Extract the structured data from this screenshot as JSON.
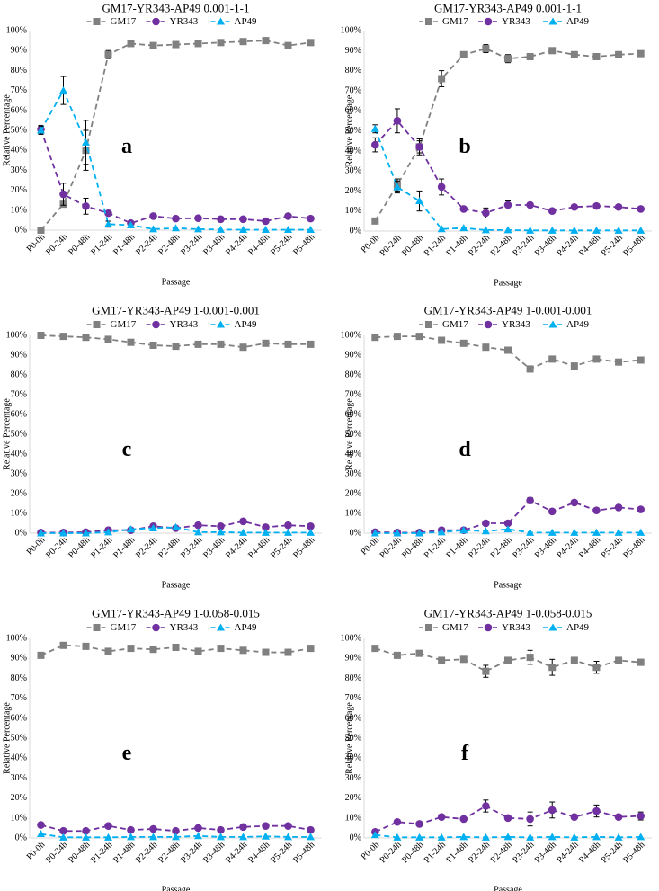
{
  "figure": {
    "xlabel": "Passage",
    "ylabel": "Relative Percentage",
    "series_colors": {
      "GM17": "#808080",
      "YR343": "#7030a0",
      "AP49": "#00b0f0"
    }
  },
  "chart_data": [
    {
      "type": "line",
      "panel_label": "a",
      "title": "GM17-YR343-AP49 0.001-1-1",
      "xlabel": "Passage",
      "ylabel": "Relative Percentage",
      "categories": [
        "P0-0h",
        "P0-24h",
        "P0-48h",
        "P1-24h",
        "P1-48h",
        "P2-24h",
        "P2-48h",
        "P3-24h",
        "P3-48h",
        "P4-24h",
        "P4-48h",
        "P5-24h",
        "P5-48h"
      ],
      "y_ticks": [
        "0%",
        "10%",
        "20%",
        "30%",
        "40%",
        "50%",
        "60%",
        "70%",
        "80%",
        "90%",
        "100%"
      ],
      "ylim": [
        0,
        100
      ],
      "legend": [
        "GM17",
        "YR343",
        "AP49"
      ],
      "series": [
        {
          "name": "GM17",
          "values": [
            0,
            13,
            40,
            88,
            93.5,
            92.5,
            93,
            93.5,
            94,
            94.5,
            95,
            92.5,
            94
          ],
          "errors": [
            0,
            1,
            10,
            2,
            1,
            1,
            1,
            1,
            1,
            1,
            1,
            1,
            1
          ]
        },
        {
          "name": "YR343",
          "values": [
            50.5,
            18,
            12,
            8.5,
            3.5,
            7,
            5.8,
            6,
            5.5,
            5.5,
            4.5,
            7,
            5.8
          ],
          "errors": [
            2,
            5.5,
            4,
            1,
            0.5,
            0.5,
            0.5,
            0.5,
            0.5,
            0.5,
            0.5,
            0.5,
            0.5
          ]
        },
        {
          "name": "AP49",
          "values": [
            50,
            70,
            44,
            3,
            2.5,
            0.5,
            1,
            0.5,
            0.3,
            0.2,
            0.2,
            0.2,
            0.2
          ],
          "errors": [
            2,
            7,
            11,
            1.5,
            0.5,
            0.2,
            0.2,
            0.2,
            0.2,
            0.2,
            0.2,
            0.2,
            0.2
          ]
        }
      ]
    },
    {
      "type": "line",
      "panel_label": "b",
      "title": "GM17-YR343-AP49 0.001-1-1",
      "xlabel": "Passage",
      "ylabel": "Relative Percentage",
      "categories": [
        "P0-0h",
        "P0-24h",
        "P0-48h",
        "P1-24h",
        "P1-48h",
        "P2-24h",
        "P2-48h",
        "P3-24h",
        "P3-48h",
        "P4-24h",
        "P4-48h",
        "P5-24h",
        "P5-48h"
      ],
      "y_ticks": [
        "0%",
        "10%",
        "20%",
        "30%",
        "40%",
        "50%",
        "60%",
        "70%",
        "80%",
        "90%",
        "100%"
      ],
      "ylim": [
        0,
        100
      ],
      "legend": [
        "GM17",
        "YR343",
        "AP49"
      ],
      "series": [
        {
          "name": "GM17",
          "values": [
            5,
            23,
            42,
            76,
            88,
            91,
            86,
            87,
            90,
            88,
            87,
            88,
            88.5
          ],
          "errors": [
            1,
            3,
            4,
            4,
            1,
            2,
            2,
            1,
            1,
            1,
            1,
            1,
            1
          ]
        },
        {
          "name": "YR343",
          "values": [
            43,
            55,
            42,
            22,
            11,
            9,
            13,
            13,
            10,
            12,
            12.5,
            12,
            11
          ],
          "errors": [
            3.5,
            6,
            3,
            4,
            1,
            2.5,
            2,
            1,
            1,
            1,
            1,
            1,
            1
          ]
        },
        {
          "name": "AP49",
          "values": [
            51,
            22,
            15,
            1,
            1.5,
            0.5,
            0.5,
            0.3,
            0.3,
            0.3,
            0.3,
            0.3,
            0.3
          ],
          "errors": [
            2,
            3,
            5,
            0.5,
            0.5,
            0.2,
            0.2,
            0.2,
            0.2,
            0.2,
            0.2,
            0.2,
            0.2
          ]
        }
      ]
    },
    {
      "type": "line",
      "panel_label": "c",
      "title": "GM17-YR343-AP49 1-0.001-0.001",
      "xlabel": "Passage",
      "ylabel": "Relative Percentage",
      "categories": [
        "P0-0h",
        "P0-24h",
        "P0-48h",
        "P1-24h",
        "P1-48h",
        "P2-24h",
        "P2-48h",
        "P3-24h",
        "P3-48h",
        "P4-24h",
        "P4-48h",
        "P5-24h",
        "P5-48h"
      ],
      "y_ticks": [
        "0%",
        "10%",
        "20%",
        "30%",
        "40%",
        "50%",
        "60%",
        "70%",
        "80%",
        "90%",
        "100%"
      ],
      "ylim": [
        0,
        100
      ],
      "legend": [
        "GM17",
        "YR343",
        "AP49"
      ],
      "series": [
        {
          "name": "GM17",
          "values": [
            100,
            99.5,
            99,
            98,
            96.5,
            95,
            94.5,
            95.5,
            95.5,
            94,
            96,
            95.5,
            95.5
          ],
          "errors": [
            0,
            0,
            0.5,
            0.5,
            0.5,
            0.5,
            0.5,
            0.5,
            0.5,
            0.5,
            0.5,
            0.5,
            0.5
          ]
        },
        {
          "name": "YR343",
          "values": [
            0.3,
            0.3,
            0.5,
            1.5,
            1.5,
            3.5,
            2.5,
            4,
            3.5,
            6,
            3,
            4,
            3.5
          ],
          "errors": [
            0,
            0,
            0,
            0.3,
            0.3,
            0.5,
            0.5,
            0.5,
            0.5,
            0.5,
            0.5,
            0.5,
            0.5
          ]
        },
        {
          "name": "AP49",
          "values": [
            0,
            0,
            0,
            0.5,
            2,
            2.5,
            3,
            0.5,
            0.5,
            0.3,
            0.3,
            0.3,
            0.3
          ],
          "errors": [
            0,
            0,
            0,
            0.2,
            0.5,
            0.5,
            0.5,
            0.2,
            0.2,
            0.2,
            0.2,
            0.2,
            0.2
          ]
        }
      ]
    },
    {
      "type": "line",
      "panel_label": "d",
      "title": "GM17-YR343-AP49 1-0.001-0.001",
      "xlabel": "Passage",
      "ylabel": "Relative Percentage",
      "categories": [
        "P0-0h",
        "P0-24h",
        "P0-48h",
        "P1-24h",
        "P1-48h",
        "P2-24h",
        "P2-48h",
        "P3-24h",
        "P3-48h",
        "P4-24h",
        "P4-48h",
        "P5-24h",
        "P5-48h"
      ],
      "y_ticks": [
        "0%",
        "10%",
        "20%",
        "30%",
        "40%",
        "50%",
        "60%",
        "70%",
        "80%",
        "90%",
        "100%"
      ],
      "ylim": [
        0,
        100
      ],
      "legend": [
        "GM17",
        "YR343",
        "AP49"
      ],
      "series": [
        {
          "name": "GM17",
          "values": [
            99,
            99.5,
            99.5,
            97.5,
            96,
            94,
            92.5,
            83,
            88,
            84.5,
            88,
            86.5,
            87.5
          ],
          "errors": [
            0,
            0,
            0.5,
            0.5,
            0.5,
            1,
            0.5,
            1.5,
            0.5,
            0.5,
            0.5,
            0.5,
            0.5
          ]
        },
        {
          "name": "YR343",
          "values": [
            0.5,
            0.3,
            0.3,
            1.5,
            1.5,
            5,
            5,
            16.5,
            11,
            15.5,
            11.5,
            13,
            12
          ],
          "errors": [
            0,
            0,
            0,
            0.3,
            0.3,
            1,
            0.5,
            1.5,
            0.5,
            0.5,
            0.5,
            0.5,
            0.5
          ]
        },
        {
          "name": "AP49",
          "values": [
            0,
            0,
            0,
            0.5,
            1.5,
            1,
            2,
            0.3,
            0.3,
            0.3,
            0.3,
            0.3,
            0.3
          ],
          "errors": [
            0,
            0,
            0,
            0.2,
            0.3,
            0.3,
            0.5,
            0.2,
            0.2,
            0.2,
            0.2,
            0.2,
            0.2
          ]
        }
      ]
    },
    {
      "type": "line",
      "panel_label": "e",
      "title": "GM17-YR343-AP49 1-0.058-0.015",
      "xlabel": "Passage",
      "ylabel": "Relative Percentage",
      "categories": [
        "P0-0h",
        "P0-24h",
        "P0-48h",
        "P1-24h",
        "P1-48h",
        "P2-24h",
        "P2-48h",
        "P3-24h",
        "P3-48h",
        "P4-24h",
        "P4-48h",
        "P5-24h",
        "P5-48h"
      ],
      "y_ticks": [
        "0%",
        "10%",
        "20%",
        "30%",
        "40%",
        "50%",
        "60%",
        "70%",
        "80%",
        "90%",
        "100%"
      ],
      "ylim": [
        0,
        100
      ],
      "legend": [
        "GM17",
        "YR343",
        "AP49"
      ],
      "series": [
        {
          "name": "GM17",
          "values": [
            91.5,
            96.5,
            96,
            93.5,
            95,
            94.5,
            95.5,
            93.5,
            95,
            94,
            93,
            93,
            95
          ],
          "errors": [
            0.5,
            0.5,
            0.5,
            0.5,
            0.5,
            0.5,
            0.5,
            0.5,
            0.5,
            0.5,
            0.5,
            0.5,
            0.5
          ]
        },
        {
          "name": "YR343",
          "values": [
            6.5,
            3.5,
            3.5,
            6,
            4,
            4.5,
            3.5,
            5,
            4,
            5.5,
            6,
            6,
            4
          ],
          "errors": [
            0.5,
            0.3,
            0.3,
            0.3,
            0.3,
            0.3,
            0.3,
            0.3,
            0.3,
            0.3,
            0.3,
            0.3,
            0.3
          ]
        },
        {
          "name": "AP49",
          "values": [
            2,
            0.3,
            0.3,
            0.3,
            0.5,
            0.5,
            0.5,
            1,
            0.5,
            0.5,
            0.8,
            0.5,
            0.5
          ],
          "errors": [
            0.3,
            0.1,
            0.1,
            0.1,
            0.1,
            0.1,
            0.1,
            0.2,
            0.1,
            0.1,
            0.1,
            0.1,
            0.1
          ]
        }
      ]
    },
    {
      "type": "line",
      "panel_label": "f",
      "title": "GM17-YR343-AP49 1-0.058-0.015",
      "xlabel": "Passage",
      "ylabel": "Relative Percentage",
      "categories": [
        "P0-0h",
        "P0-24h",
        "P0-48h",
        "P1-24h",
        "P1-48h",
        "P2-24h",
        "P2-48h",
        "P3-24h",
        "P3-48h",
        "P4-24h",
        "P4-48h",
        "P5-24h",
        "P5-48h"
      ],
      "y_ticks": [
        "0%",
        "10%",
        "20%",
        "30%",
        "40%",
        "50%",
        "60%",
        "70%",
        "80%",
        "90%",
        "100%"
      ],
      "ylim": [
        0,
        100
      ],
      "legend": [
        "GM17",
        "YR343",
        "AP49"
      ],
      "series": [
        {
          "name": "GM17",
          "values": [
            95,
            91.5,
            92.5,
            89,
            89.5,
            83.5,
            89,
            90.5,
            85.5,
            89,
            85.5,
            89,
            88
          ],
          "errors": [
            0.5,
            0.5,
            0.5,
            0.5,
            0.5,
            3,
            0.5,
            3.5,
            4,
            0.5,
            3,
            0.5,
            1.5
          ]
        },
        {
          "name": "YR343",
          "values": [
            3,
            8,
            7,
            10.5,
            9.5,
            16,
            10,
            9.5,
            14,
            10.5,
            13.5,
            10.5,
            11
          ],
          "errors": [
            0.5,
            0.5,
            0.5,
            0.5,
            0.5,
            3,
            0.5,
            3.5,
            4,
            0.5,
            3,
            0.5,
            2
          ]
        },
        {
          "name": "AP49",
          "values": [
            1.5,
            0.3,
            0.3,
            0.3,
            0.5,
            0.3,
            0.5,
            0.3,
            0.5,
            0.3,
            0.5,
            0.3,
            0.5
          ],
          "errors": [
            0.3,
            0.1,
            0.1,
            0.1,
            0.1,
            0.1,
            0.1,
            0.1,
            0.1,
            0.1,
            0.1,
            0.1,
            0.1
          ]
        }
      ]
    }
  ]
}
